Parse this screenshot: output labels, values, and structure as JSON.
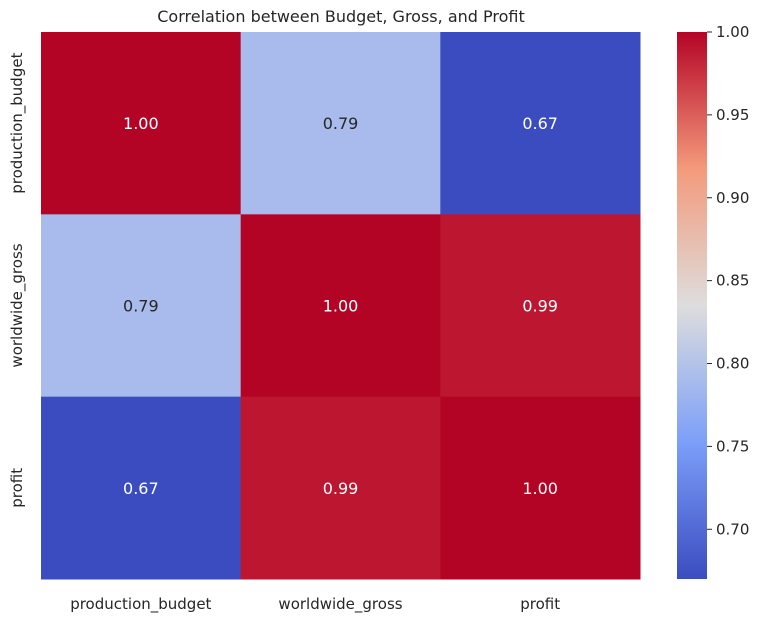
{
  "chart_data": {
    "type": "heatmap",
    "title": "Correlation between Budget, Gross, and Profit",
    "x_categories": [
      "production_budget",
      "worldwide_gross",
      "profit"
    ],
    "y_categories": [
      "production_budget",
      "worldwide_gross",
      "profit"
    ],
    "values": [
      [
        1.0,
        0.79,
        0.67
      ],
      [
        0.79,
        1.0,
        0.99
      ],
      [
        0.67,
        0.99,
        1.0
      ]
    ],
    "annotations": [
      [
        "1.00",
        "0.79",
        "0.67"
      ],
      [
        "0.79",
        "1.00",
        "0.99"
      ],
      [
        "0.67",
        "0.99",
        "1.00"
      ]
    ],
    "colormap": "coolwarm",
    "colorbar": {
      "vmin": 0.67,
      "vmax": 1.0,
      "ticks": [
        0.7,
        0.75,
        0.8,
        0.85,
        0.9,
        0.95,
        1.0
      ],
      "tick_labels": [
        "0.70",
        "0.75",
        "0.80",
        "0.85",
        "0.90",
        "0.95",
        "1.00"
      ],
      "placement": "right"
    },
    "grid": false
  }
}
